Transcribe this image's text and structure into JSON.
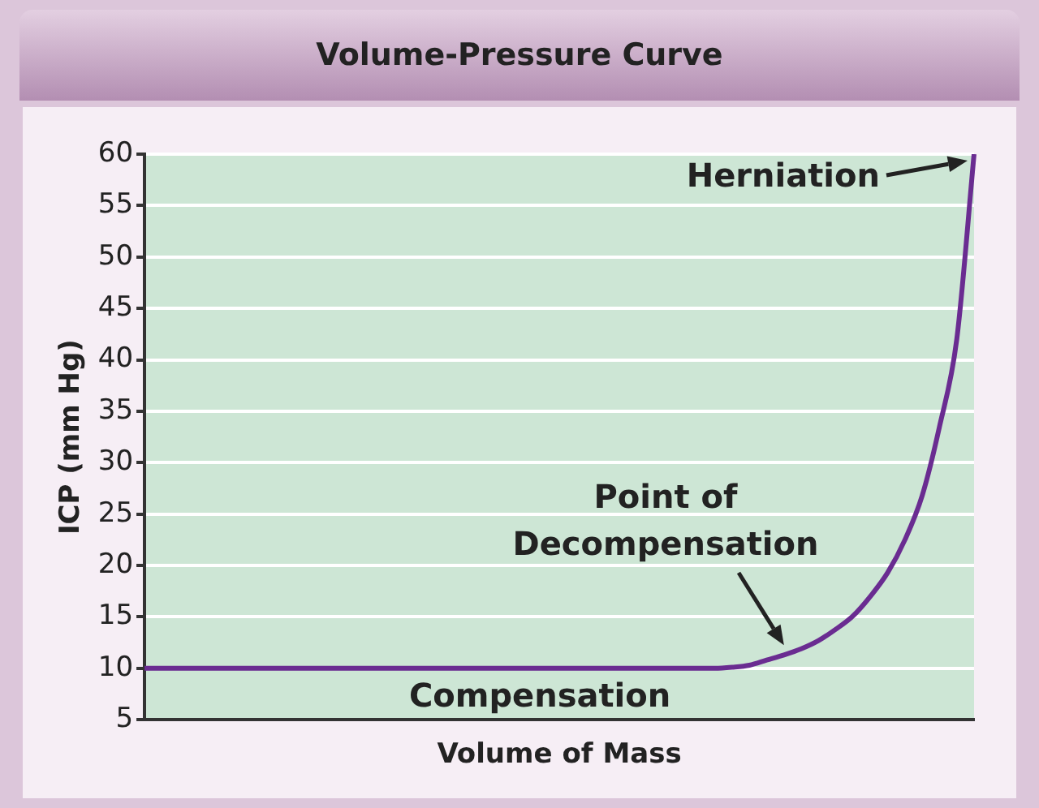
{
  "chart_data": {
    "type": "line",
    "title": "Volume-Pressure Curve",
    "xlabel": "Volume of Mass",
    "ylabel": "ICP (mm Hg)",
    "categories": [
      null,
      null,
      null,
      null,
      null,
      null,
      null,
      null,
      null,
      null,
      null,
      null,
      null,
      null,
      null,
      null,
      null,
      null,
      null,
      null,
      null,
      null,
      null,
      null,
      null,
      null,
      null,
      null,
      null,
      null,
      null,
      null,
      null,
      null,
      null,
      null,
      null,
      null,
      null,
      null,
      null,
      null,
      null,
      null,
      null,
      null,
      null,
      null,
      null
    ],
    "series": [
      {
        "color": "#6a2c91",
        "values": [
          10,
          10,
          10,
          10,
          10,
          10,
          10,
          10,
          10,
          10,
          10,
          10,
          10,
          10,
          10,
          10,
          10,
          10,
          10,
          10,
          10,
          10,
          10,
          10,
          10,
          10,
          10,
          10,
          10,
          10,
          10,
          10,
          10,
          10,
          10.1,
          10.3,
          10.8,
          11.3,
          11.9,
          12.7,
          13.8,
          15.1,
          17,
          19.3,
          22.5,
          26.8,
          33.5,
          42,
          60
        ]
      }
    ],
    "ylim": [
      5,
      60
    ],
    "yticks": [
      5,
      10,
      15,
      20,
      25,
      30,
      35,
      40,
      45,
      50,
      55,
      60
    ],
    "grid": "y",
    "marker": "none",
    "line_style": "solid",
    "legend": false,
    "annotations": [
      "Herniation",
      "Point of\nDecompensation",
      "Compensation"
    ]
  }
}
